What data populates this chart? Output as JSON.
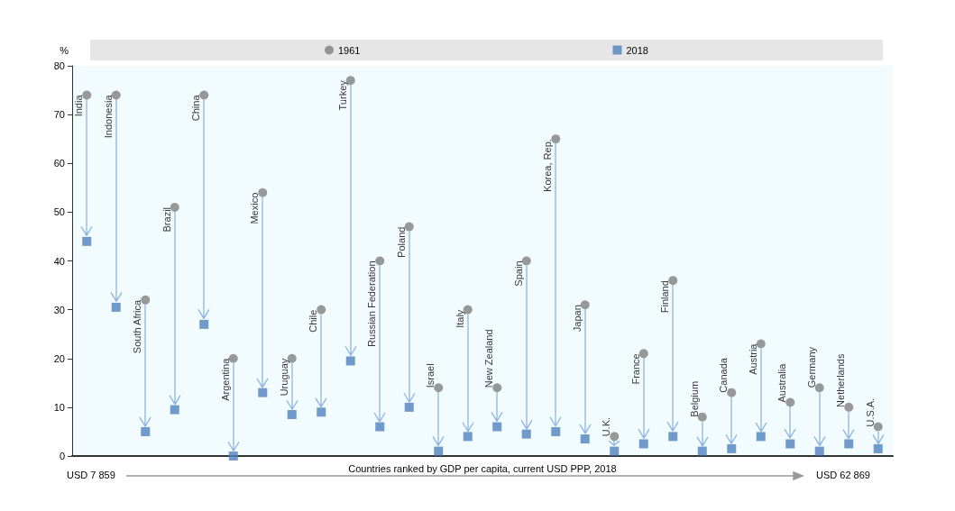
{
  "chart_data": {
    "type": "scatter",
    "ylabel": "%",
    "xlabel": "Countries ranked by GDP per capita, current USD PPP, 2018",
    "categories": [
      "India",
      "Indonesia",
      "South Africa",
      "Brazil",
      "China",
      "Argentina",
      "Mexico",
      "Uruguay",
      "Chile",
      "Turkey",
      "Russian Federation",
      "Poland",
      "Israel",
      "Italy",
      "New Zealand",
      "Spain",
      "Korea, Rep.",
      "Japan",
      "U.K.",
      "France",
      "Finland",
      "Belgium",
      "Canada",
      "Austria",
      "Australia",
      "Germany",
      "Netherlands",
      "U.S.A."
    ],
    "series": [
      {
        "name": "1961",
        "color": "#7f7f7f",
        "marker": "circle",
        "values": [
          74,
          74,
          32,
          51,
          74,
          20,
          54,
          20,
          30,
          77,
          40,
          47,
          14,
          30,
          14,
          40,
          65,
          31,
          4,
          21,
          36,
          8,
          13,
          23,
          11,
          14,
          10,
          6
        ]
      },
      {
        "name": "2018",
        "color": "#4f81bd",
        "marker": "square",
        "values": [
          44,
          30.5,
          5,
          9.5,
          27,
          0,
          13,
          8.5,
          9,
          19.5,
          6,
          10,
          1,
          4,
          6,
          4.5,
          5,
          3.5,
          1,
          2.5,
          4,
          1,
          1.5,
          4,
          2.5,
          1,
          2.5,
          1.5
        ]
      }
    ],
    "ylim": [
      0,
      80
    ],
    "yticks": [
      0,
      10,
      20,
      30,
      40,
      50,
      60,
      70,
      80
    ],
    "legend": "top",
    "grid": false,
    "annotations": [
      "USD 7 859",
      "USD 62 869"
    ]
  }
}
